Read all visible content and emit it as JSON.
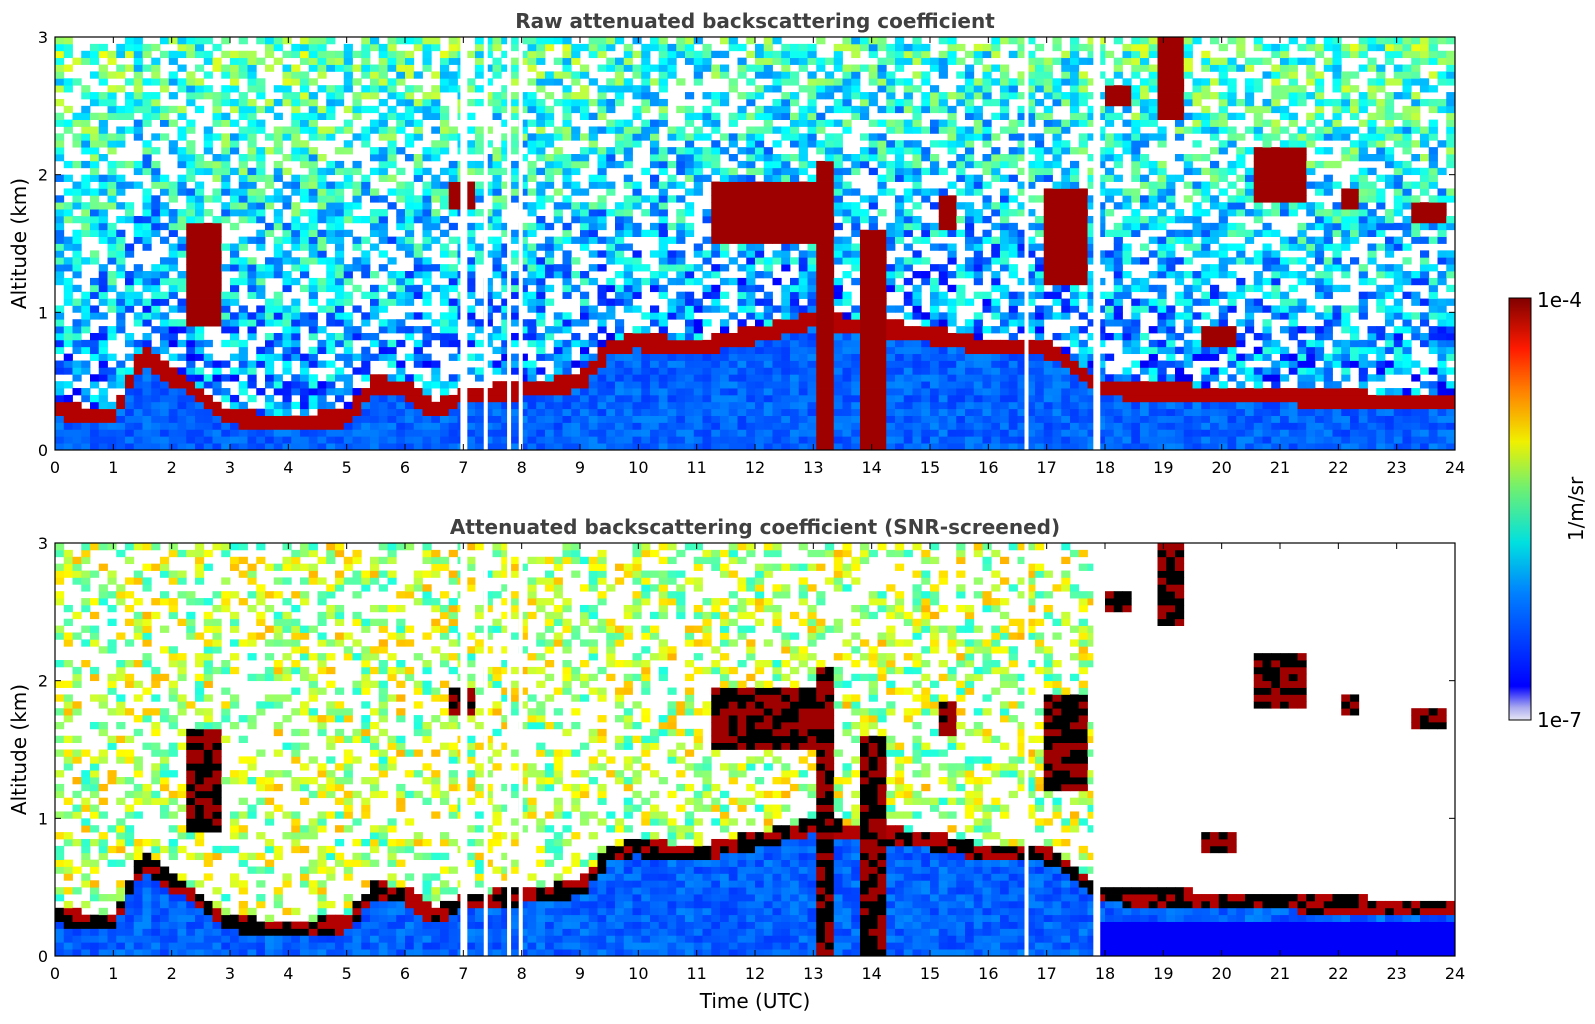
{
  "chart_data": [
    {
      "type": "heatmap",
      "title": "Raw attenuated backscattering coefficient",
      "xlabel": "",
      "ylabel": "Altitude (km)",
      "xlim": [
        0,
        24
      ],
      "ylim": [
        0,
        3
      ],
      "xticks": [
        "0",
        "1",
        "2",
        "3",
        "4",
        "5",
        "6",
        "7",
        "8",
        "9",
        "10",
        "11",
        "12",
        "13",
        "14",
        "15",
        "16",
        "17",
        "18",
        "19",
        "20",
        "21",
        "22",
        "23",
        "24"
      ],
      "yticks": [
        "0",
        "1",
        "2",
        "3"
      ],
      "data_gaps_hours": [
        6.95,
        7.0,
        7.35,
        7.75,
        7.95,
        16.62,
        17.8,
        17.85
      ],
      "boundary_layer_km": [
        [
          0,
          0.35
        ],
        [
          1,
          0.3
        ],
        [
          1.5,
          0.75
        ],
        [
          2,
          0.6
        ],
        [
          3,
          0.3
        ],
        [
          4,
          0.25
        ],
        [
          5,
          0.3
        ],
        [
          5.5,
          0.55
        ],
        [
          6,
          0.5
        ],
        [
          6.5,
          0.35
        ],
        [
          7,
          0.45
        ],
        [
          8,
          0.5
        ],
        [
          9,
          0.55
        ],
        [
          9.5,
          0.8
        ],
        [
          10,
          0.85
        ],
        [
          11,
          0.8
        ],
        [
          12,
          0.9
        ],
        [
          13,
          1.0
        ],
        [
          15,
          0.9
        ],
        [
          16,
          0.8
        ],
        [
          17,
          0.8
        ],
        [
          18,
          0.5
        ],
        [
          24,
          0.4
        ]
      ],
      "cloud_layers": [
        {
          "t0": 2.3,
          "t1": 2.9,
          "base_km": 0.9,
          "top_km": 1.65
        },
        {
          "t0": 6.7,
          "t1": 7.2,
          "base_km": 1.75,
          "top_km": 1.95
        },
        {
          "t0": 11.2,
          "t1": 13.2,
          "base_km": 1.5,
          "top_km": 1.95
        },
        {
          "t0": 13.0,
          "t1": 13.3,
          "base_km": 0.0,
          "top_km": 2.1
        },
        {
          "t0": 13.8,
          "t1": 14.3,
          "base_km": 0.0,
          "top_km": 1.6
        },
        {
          "t0": 15.1,
          "t1": 15.5,
          "base_km": 1.6,
          "top_km": 1.85
        },
        {
          "t0": 17.0,
          "t1": 17.7,
          "base_km": 1.2,
          "top_km": 1.9
        },
        {
          "t0": 18.0,
          "t1": 18.4,
          "base_km": 2.5,
          "top_km": 2.65
        },
        {
          "t0": 18.9,
          "t1": 19.3,
          "base_km": 2.4,
          "top_km": 3.0
        },
        {
          "t0": 19.7,
          "t1": 20.3,
          "base_km": 0.75,
          "top_km": 0.9
        },
        {
          "t0": 20.6,
          "t1": 21.5,
          "base_km": 1.8,
          "top_km": 2.2
        },
        {
          "t0": 22.0,
          "t1": 22.4,
          "base_km": 1.75,
          "top_km": 1.9
        },
        {
          "t0": 23.3,
          "t1": 23.9,
          "base_km": 1.65,
          "top_km": 1.8
        }
      ]
    },
    {
      "type": "heatmap",
      "title": "Attenuated backscattering coefficient (SNR-screened)",
      "xlabel": "Time (UTC)",
      "ylabel": "Altitude (km)",
      "xlim": [
        0,
        24
      ],
      "ylim": [
        0,
        3
      ],
      "xticks": [
        "0",
        "1",
        "2",
        "3",
        "4",
        "5",
        "6",
        "7",
        "8",
        "9",
        "10",
        "11",
        "12",
        "13",
        "14",
        "15",
        "16",
        "17",
        "18",
        "19",
        "20",
        "21",
        "22",
        "23",
        "24"
      ],
      "yticks": [
        "0",
        "1",
        "2",
        "3"
      ],
      "screened_after_hours": 17.8,
      "screened_max_altitude_km": 0.25
    }
  ],
  "colorbar": {
    "label": "1/m/sr",
    "max_label": "1e-4",
    "min_label": "1e-7",
    "scale": "log",
    "colormap": "jet"
  },
  "colors": {
    "axis": "#000000",
    "title": "#404040",
    "background": "#ffffff"
  }
}
